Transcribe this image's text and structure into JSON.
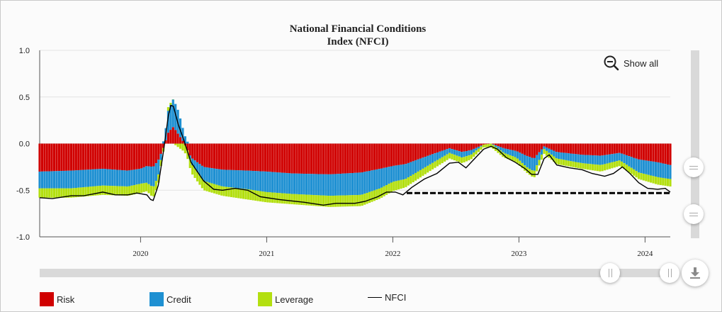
{
  "title_line1": "National Financial Conditions",
  "title_line2": "Index (NFCI)",
  "show_all_label": "Show all",
  "icons": {
    "zoom_out": "zoom-out-icon",
    "download": "download-icon"
  },
  "colors": {
    "risk": "#d00000",
    "credit": "#1e90d2",
    "leverage": "#b3df10",
    "nfci": "#000000"
  },
  "chart_data": {
    "type": "bar",
    "title": "National Financial Conditions Index (NFCI)",
    "x_ticks": [
      "2020",
      "2021",
      "2022",
      "2023",
      "2024"
    ],
    "x_range": [
      2019.2,
      2024.2
    ],
    "y_ticks": [
      "1.0",
      "0.5",
      "0.0",
      "-0.5",
      "-1.0"
    ],
    "ylim": [
      -1.0,
      1.0
    ],
    "grid": true,
    "legend_position": "bottom",
    "stacked": true,
    "reference_line": {
      "style": "dashed",
      "y": -0.53,
      "x_start": 2022.11,
      "x_end": 2024.2
    },
    "keyframes": [
      [
        2019.2,
        -0.3,
        -0.18,
        -0.1
      ],
      [
        2019.45,
        -0.29,
        -0.19,
        -0.1
      ],
      [
        2019.7,
        -0.27,
        -0.18,
        -0.1
      ],
      [
        2019.9,
        -0.29,
        -0.17,
        -0.1
      ],
      [
        2020.0,
        -0.27,
        -0.16,
        -0.1
      ],
      [
        2020.05,
        -0.24,
        -0.18,
        -0.09
      ],
      [
        2020.1,
        -0.25,
        -0.22,
        -0.11
      ],
      [
        2020.14,
        -0.18,
        -0.17,
        -0.09
      ],
      [
        2020.18,
        -0.05,
        0.02,
        -0.04
      ],
      [
        2020.22,
        0.12,
        0.24,
        0.04
      ],
      [
        2020.26,
        0.18,
        0.3,
        0.0
      ],
      [
        2020.3,
        0.1,
        0.25,
        -0.04
      ],
      [
        2020.34,
        0.02,
        0.12,
        -0.08
      ],
      [
        2020.4,
        -0.15,
        -0.06,
        -0.1
      ],
      [
        2020.5,
        -0.25,
        -0.15,
        -0.1
      ],
      [
        2020.65,
        -0.28,
        -0.18,
        -0.1
      ],
      [
        2020.85,
        -0.29,
        -0.2,
        -0.11
      ],
      [
        2021.0,
        -0.3,
        -0.22,
        -0.11
      ],
      [
        2021.2,
        -0.32,
        -0.22,
        -0.11
      ],
      [
        2021.5,
        -0.33,
        -0.23,
        -0.12
      ],
      [
        2021.75,
        -0.31,
        -0.24,
        -0.12
      ],
      [
        2021.9,
        -0.27,
        -0.21,
        -0.11
      ],
      [
        2022.0,
        -0.24,
        -0.17,
        -0.1
      ],
      [
        2022.1,
        -0.22,
        -0.16,
        -0.09
      ],
      [
        2022.3,
        -0.12,
        -0.1,
        -0.07
      ],
      [
        2022.45,
        -0.05,
        -0.05,
        -0.06
      ],
      [
        2022.55,
        -0.09,
        -0.06,
        -0.06
      ],
      [
        2022.62,
        -0.07,
        -0.05,
        -0.05
      ],
      [
        2022.72,
        -0.01,
        0.0,
        -0.03
      ],
      [
        2022.78,
        0.0,
        0.0,
        -0.04
      ],
      [
        2022.88,
        -0.05,
        -0.05,
        -0.05
      ],
      [
        2022.98,
        -0.08,
        -0.07,
        -0.05
      ],
      [
        2023.06,
        -0.13,
        -0.12,
        -0.06
      ],
      [
        2023.12,
        -0.16,
        -0.14,
        -0.07
      ],
      [
        2023.2,
        -0.03,
        -0.03,
        -0.05
      ],
      [
        2023.3,
        -0.09,
        -0.07,
        -0.06
      ],
      [
        2023.5,
        -0.12,
        -0.09,
        -0.06
      ],
      [
        2023.65,
        -0.13,
        -0.1,
        -0.07
      ],
      [
        2023.8,
        -0.1,
        -0.08,
        -0.06
      ],
      [
        2023.95,
        -0.17,
        -0.14,
        -0.07
      ],
      [
        2024.1,
        -0.2,
        -0.16,
        -0.08
      ],
      [
        2024.2,
        -0.23,
        -0.15,
        -0.08
      ]
    ],
    "nfci": [
      [
        2019.2,
        -0.58
      ],
      [
        2019.3,
        -0.59
      ],
      [
        2019.45,
        -0.56
      ],
      [
        2019.55,
        -0.56
      ],
      [
        2019.7,
        -0.52
      ],
      [
        2019.8,
        -0.55
      ],
      [
        2019.9,
        -0.55
      ],
      [
        2019.97,
        -0.53
      ],
      [
        2020.05,
        -0.55
      ],
      [
        2020.08,
        -0.6
      ],
      [
        2020.1,
        -0.61
      ],
      [
        2020.14,
        -0.45
      ],
      [
        2020.18,
        -0.1
      ],
      [
        2020.22,
        0.3
      ],
      [
        2020.24,
        0.41
      ],
      [
        2020.26,
        0.4
      ],
      [
        2020.3,
        0.2
      ],
      [
        2020.34,
        0.05
      ],
      [
        2020.4,
        -0.2
      ],
      [
        2020.5,
        -0.4
      ],
      [
        2020.58,
        -0.49
      ],
      [
        2020.65,
        -0.5
      ],
      [
        2020.75,
        -0.48
      ],
      [
        2020.85,
        -0.5
      ],
      [
        2020.95,
        -0.57
      ],
      [
        2021.1,
        -0.6
      ],
      [
        2021.3,
        -0.63
      ],
      [
        2021.45,
        -0.66
      ],
      [
        2021.55,
        -0.64
      ],
      [
        2021.7,
        -0.64
      ],
      [
        2021.78,
        -0.62
      ],
      [
        2021.88,
        -0.57
      ],
      [
        2021.95,
        -0.52
      ],
      [
        2022.02,
        -0.52
      ],
      [
        2022.08,
        -0.55
      ],
      [
        2022.15,
        -0.47
      ],
      [
        2022.25,
        -0.38
      ],
      [
        2022.35,
        -0.32
      ],
      [
        2022.45,
        -0.21
      ],
      [
        2022.52,
        -0.2
      ],
      [
        2022.58,
        -0.26
      ],
      [
        2022.65,
        -0.16
      ],
      [
        2022.72,
        -0.06
      ],
      [
        2022.78,
        -0.03
      ],
      [
        2022.83,
        -0.06
      ],
      [
        2022.9,
        -0.15
      ],
      [
        2022.97,
        -0.2
      ],
      [
        2023.05,
        -0.27
      ],
      [
        2023.1,
        -0.33
      ],
      [
        2023.15,
        -0.33
      ],
      [
        2023.2,
        -0.16
      ],
      [
        2023.24,
        -0.12
      ],
      [
        2023.3,
        -0.23
      ],
      [
        2023.4,
        -0.26
      ],
      [
        2023.5,
        -0.28
      ],
      [
        2023.58,
        -0.32
      ],
      [
        2023.68,
        -0.35
      ],
      [
        2023.75,
        -0.32
      ],
      [
        2023.82,
        -0.25
      ],
      [
        2023.88,
        -0.32
      ],
      [
        2023.95,
        -0.42
      ],
      [
        2024.02,
        -0.48
      ],
      [
        2024.1,
        -0.49
      ],
      [
        2024.16,
        -0.48
      ],
      [
        2024.2,
        -0.52
      ]
    ],
    "legend": [
      {
        "key": "risk",
        "label": "Risk"
      },
      {
        "key": "credit",
        "label": "Credit"
      },
      {
        "key": "leverage",
        "label": "Leverage"
      },
      {
        "key": "nfci",
        "label": "NFCI"
      }
    ]
  }
}
